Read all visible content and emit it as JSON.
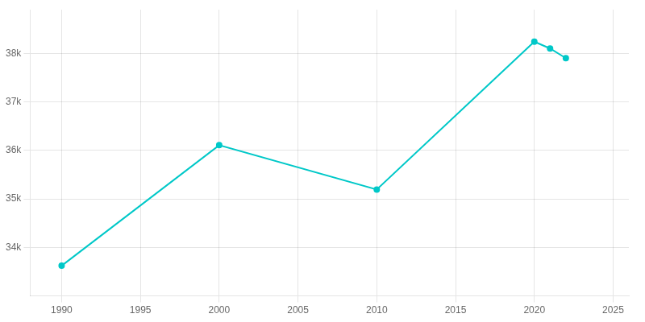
{
  "chart_data": {
    "type": "line",
    "x": [
      1990,
      2000,
      2010,
      2020,
      2021,
      2022
    ],
    "values": [
      33622,
      36107,
      35193,
      38240,
      38100,
      37900
    ],
    "color": "#00c8c8",
    "marker": "circle",
    "xlim": [
      1988,
      2026
    ],
    "xticks": [
      1990,
      1995,
      2000,
      2005,
      2010,
      2015,
      2020,
      2025
    ],
    "ylim": [
      33000,
      38900
    ],
    "yticks": [
      {
        "value": 34000,
        "label": "34k"
      },
      {
        "value": 35000,
        "label": "35k"
      },
      {
        "value": 36000,
        "label": "36k"
      },
      {
        "value": 37000,
        "label": "37k"
      },
      {
        "value": 38000,
        "label": "38k"
      }
    ],
    "grid": true
  }
}
